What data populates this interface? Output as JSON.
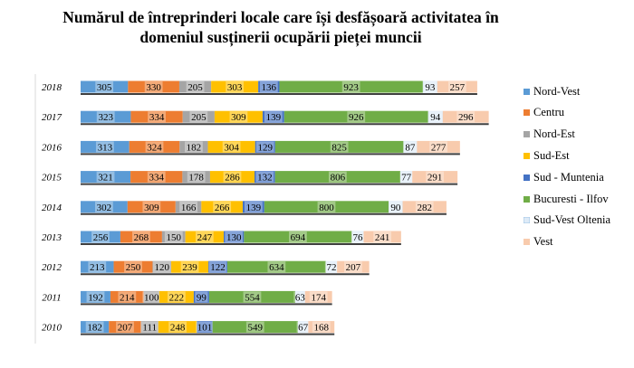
{
  "chart_data": {
    "type": "bar",
    "orientation": "horizontal",
    "stacked": true,
    "title": "Numărul de întreprinderi locale care își desfășoară activitatea în domeniul susținerii ocupării pieței muncii",
    "categories": [
      "2018",
      "2017",
      "2016",
      "2015",
      "2014",
      "2013",
      "2012",
      "2011",
      "2010"
    ],
    "series": [
      {
        "name": "Nord-Vest",
        "color": "#5B9BD5",
        "values": [
          305,
          323,
          313,
          321,
          302,
          256,
          213,
          192,
          182
        ]
      },
      {
        "name": "Centru",
        "color": "#ED7D31",
        "values": [
          330,
          334,
          324,
          334,
          309,
          268,
          250,
          214,
          207
        ]
      },
      {
        "name": "Nord-Est",
        "color": "#A5A5A5",
        "values": [
          205,
          205,
          182,
          178,
          166,
          150,
          120,
          100,
          111
        ]
      },
      {
        "name": "Sud-Est",
        "color": "#FFC000",
        "values": [
          303,
          309,
          304,
          286,
          266,
          247,
          239,
          222,
          248
        ]
      },
      {
        "name": "Sud - Muntenia",
        "color": "#4472C4",
        "values": [
          136,
          139,
          129,
          132,
          139,
          130,
          122,
          99,
          101
        ]
      },
      {
        "name": "Bucuresti - Ilfov",
        "color": "#70AD47",
        "values": [
          923,
          926,
          825,
          806,
          800,
          694,
          634,
          554,
          549
        ]
      },
      {
        "name": "Sud-Vest Oltenia",
        "color": "#DEEBF7",
        "values": [
          93,
          94,
          87,
          77,
          90,
          76,
          72,
          63,
          67
        ]
      },
      {
        "name": "Vest",
        "color": "#F8CBAD",
        "values": [
          257,
          296,
          277,
          291,
          282,
          241,
          207,
          174,
          168
        ]
      }
    ],
    "legend_position": "right",
    "grid": false,
    "data_labels": true
  }
}
